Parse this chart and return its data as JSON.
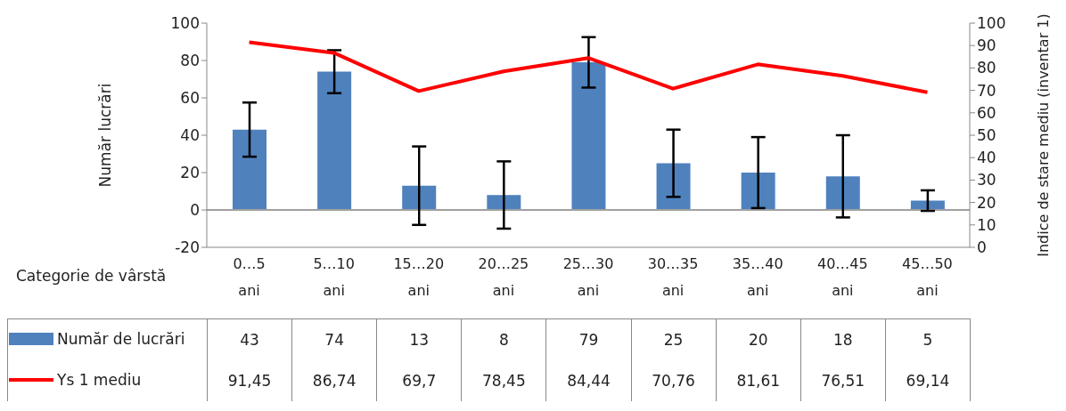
{
  "chart_data": {
    "type": "bar",
    "xlabel": "Categorie de vârstă",
    "ylabel": "Număr lucrări",
    "y2label": "Indice de stare mediu (inventar 1)",
    "categories": [
      "0…5 ani",
      "5…10 ani",
      "15…20 ani",
      "20…25 ani",
      "25…30 ani",
      "30…35 ani",
      "35…40 ani",
      "40…45 ani",
      "45…50 ani"
    ],
    "series": [
      {
        "name": "Număr de lucrări",
        "color": "#4f81bd",
        "values": [
          43,
          74,
          13,
          8,
          79,
          25,
          20,
          18,
          5
        ],
        "errors": [
          14.5,
          11.5,
          21,
          18,
          13.5,
          18,
          19,
          22,
          5.5
        ],
        "value_labels": [
          "43",
          "74",
          "13",
          "8",
          "79",
          "25",
          "20",
          "18",
          "5"
        ]
      },
      {
        "name": "Ys 1 mediu",
        "type": "line",
        "axis": "y2",
        "color": "#ff0000",
        "values": [
          91.45,
          86.74,
          69.7,
          78.45,
          84.44,
          70.76,
          81.61,
          76.51,
          69.14
        ],
        "value_labels": [
          "91,45",
          "86,74",
          "69,7",
          "78,45",
          "84,44",
          "70,76",
          "81,61",
          "76,51",
          "69,14"
        ]
      }
    ],
    "ylim": [
      -20,
      100
    ],
    "yticks": [
      -20,
      0,
      20,
      40,
      60,
      80,
      100
    ],
    "y2lim": [
      0,
      100
    ],
    "y2ticks": [
      0,
      10,
      20,
      30,
      40,
      50,
      60,
      70,
      80,
      90,
      100
    ],
    "ref_lines": [
      {
        "axis": "y",
        "value": 0,
        "color": "#a0a0a0"
      }
    ],
    "grid": false,
    "legend": "bottom",
    "marker": "none",
    "line_style": "solid"
  }
}
